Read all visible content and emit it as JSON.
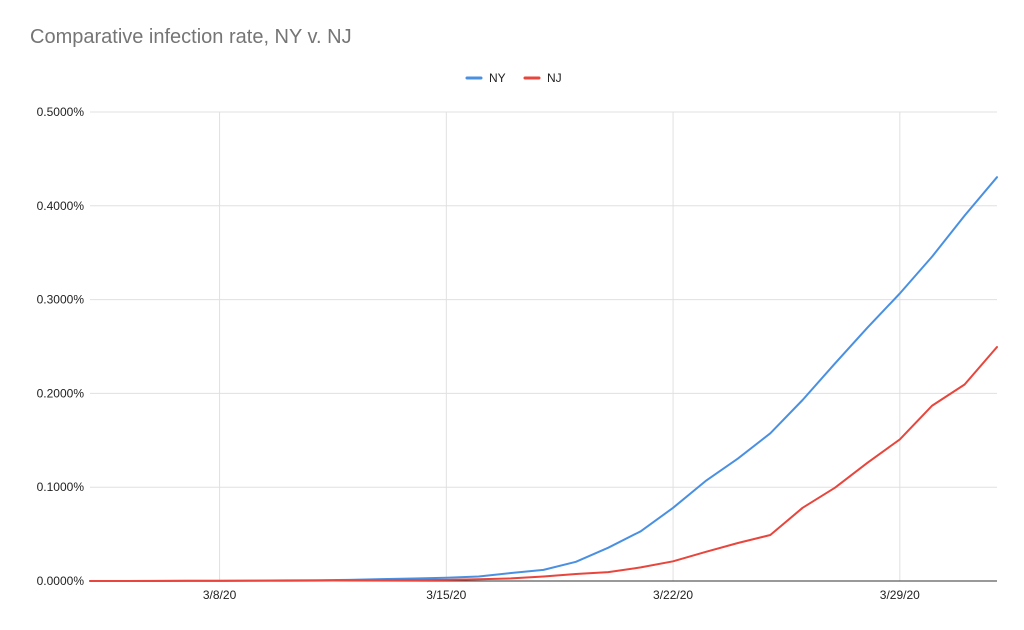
{
  "chart_data": {
    "type": "line",
    "title": "Comparative infection rate, NY v. NJ",
    "xlabel": "",
    "ylabel": "",
    "x": [
      "3/4/20",
      "3/5/20",
      "3/6/20",
      "3/7/20",
      "3/8/20",
      "3/9/20",
      "3/10/20",
      "3/11/20",
      "3/12/20",
      "3/13/20",
      "3/14/20",
      "3/15/20",
      "3/16/20",
      "3/17/20",
      "3/18/20",
      "3/19/20",
      "3/20/20",
      "3/21/20",
      "3/22/20",
      "3/23/20",
      "3/24/20",
      "3/25/20",
      "3/26/20",
      "3/27/20",
      "3/28/20",
      "3/29/20",
      "3/30/20",
      "3/31/20",
      "4/1/20"
    ],
    "x_ticks": [
      "3/8/20",
      "3/15/20",
      "3/22/20",
      "3/29/20"
    ],
    "y_ticks": [
      "0.0000%",
      "0.1000%",
      "0.2000%",
      "0.3000%",
      "0.4000%",
      "0.5000%"
    ],
    "ylim": [
      0,
      0.5
    ],
    "y_unit": "percent",
    "grid": true,
    "legend_position": "top",
    "series": [
      {
        "name": "NY",
        "color": "#4a90e2",
        "values": [
          0.0,
          0.0,
          0.0001,
          0.0002,
          0.0003,
          0.0004,
          0.0006,
          0.0008,
          0.0012,
          0.002,
          0.0027,
          0.0035,
          0.0048,
          0.0085,
          0.0118,
          0.0205,
          0.0355,
          0.053,
          0.078,
          0.1065,
          0.1305,
          0.1575,
          0.193,
          0.232,
          0.27,
          0.3065,
          0.346,
          0.3895,
          0.4305
        ]
      },
      {
        "name": "NJ",
        "color": "#e8453c",
        "values": [
          0.0,
          0.0,
          0.0,
          0.0001,
          0.0001,
          0.0002,
          0.0003,
          0.0004,
          0.0006,
          0.0008,
          0.001,
          0.0012,
          0.0018,
          0.0028,
          0.0048,
          0.0075,
          0.0095,
          0.0145,
          0.021,
          0.031,
          0.0405,
          0.049,
          0.078,
          0.0995,
          0.126,
          0.151,
          0.187,
          0.2095,
          0.2495
        ]
      }
    ]
  }
}
